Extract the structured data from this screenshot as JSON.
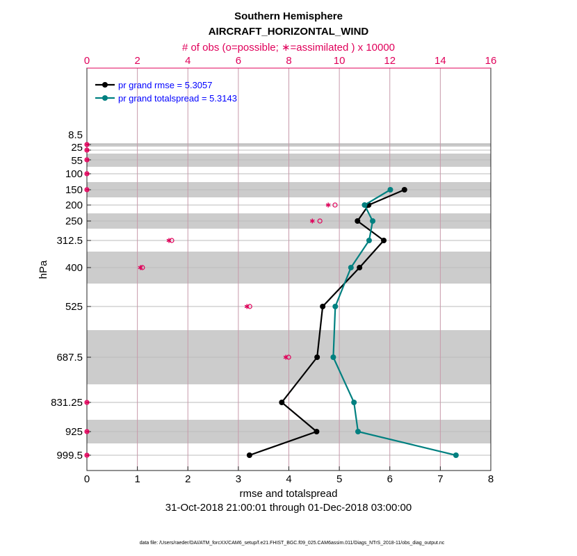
{
  "chart_data": {
    "type": "line",
    "title": "Southern Hemisphere",
    "subtitle": "AIRCRAFT_HORIZONTAL_WIND",
    "top_axis_label": "# of obs (o=possible; ∗=assimilated ) x 10000",
    "xlabel": "rmse and totalspread",
    "ylabel": "hPa",
    "date_range": "31-Oct-2018 21:00:01 through 01-Dec-2018 03:00:00",
    "footer": "data file: /Users/raeder/DAI/ATM_forcXX/CAM6_setup/f.e21.FHIST_BGC.f09_025.CAM6assim.011/Diags_NTrS_2018-11/obs_diag_output.nc",
    "xlim": [
      0,
      8
    ],
    "xticks": [
      "0",
      "1",
      "2",
      "3",
      "4",
      "5",
      "6",
      "7",
      "8"
    ],
    "top_xlim": [
      0,
      16
    ],
    "top_xticks": [
      "0",
      "2",
      "4",
      "6",
      "8",
      "10",
      "12",
      "14",
      "16"
    ],
    "levels": [
      "8.5",
      "25",
      "55",
      "100",
      "150",
      "200",
      "250",
      "312.5",
      "400",
      "525",
      "687.5",
      "831.25",
      "925",
      "999.5"
    ],
    "series": [
      {
        "name": "pr grand rmse = 5.3057",
        "color": "#000000",
        "values": [
          null,
          null,
          null,
          null,
          6.29,
          5.58,
          5.36,
          5.88,
          5.4,
          4.67,
          4.56,
          3.86,
          4.55,
          3.22
        ]
      },
      {
        "name": "pr grand totalspread = 5.3143",
        "color": "#008080",
        "values": [
          null,
          null,
          null,
          null,
          6.01,
          5.5,
          5.66,
          5.59,
          5.23,
          4.92,
          4.88,
          5.29,
          5.37,
          7.31
        ]
      }
    ],
    "obs_possible": [
      0,
      0,
      0,
      0,
      0,
      9.83,
      9.23,
      3.36,
      2.2,
      6.45,
      7.99,
      0,
      0,
      0
    ],
    "obs_assimilated": [
      0,
      0,
      0,
      0,
      0,
      9.56,
      8.93,
      3.25,
      2.12,
      6.34,
      7.88,
      0,
      0,
      0
    ],
    "obs_color": "#e0005a",
    "legend_text_color": "#0000ff",
    "legend_position": "top-left"
  }
}
